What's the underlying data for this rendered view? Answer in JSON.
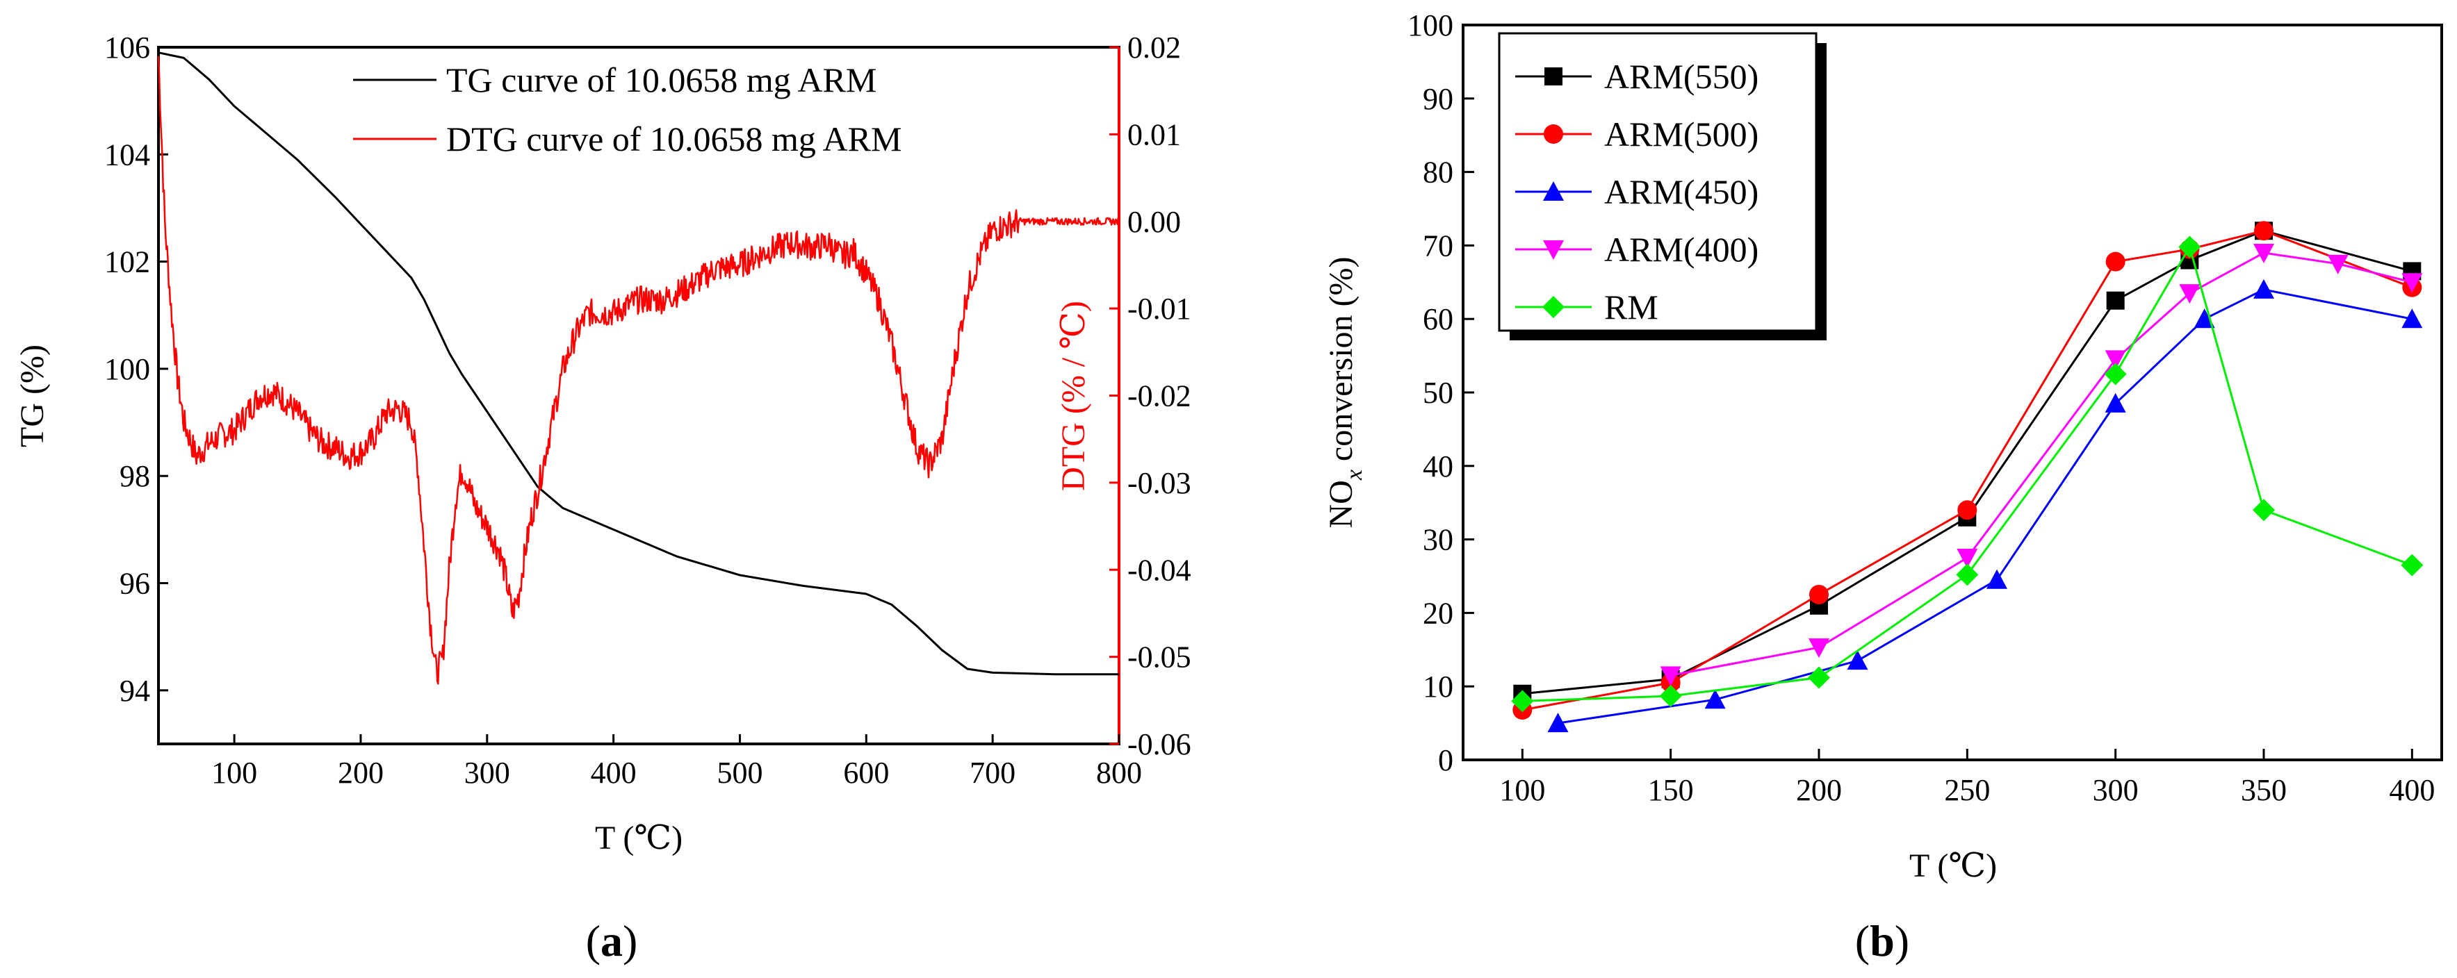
{
  "figure_labels": {
    "a": "a",
    "b": "b"
  },
  "chart_data": [
    {
      "id": "a",
      "type": "line",
      "xlabel": "T (℃)",
      "ylabel_left": "TG (%)",
      "ylabel_right": "DTG (% / ℃)",
      "xlim": [
        40,
        800
      ],
      "ylim_left": [
        93,
        106
      ],
      "ylim_right": [
        -0.06,
        0.02
      ],
      "x_ticks": [
        100,
        200,
        300,
        400,
        500,
        600,
        700,
        800
      ],
      "y_ticks_left": [
        94,
        96,
        98,
        100,
        102,
        104,
        106
      ],
      "y_ticks_right": [
        -0.06,
        -0.05,
        -0.04,
        -0.03,
        -0.02,
        -0.01,
        0.0,
        0.01,
        0.02
      ],
      "y_ticks_right_labels": [
        "-0.06",
        "-0.05",
        "-0.04",
        "-0.03",
        "-0.02",
        "-0.01",
        "0.00",
        "0.01",
        "0.02"
      ],
      "series": [
        {
          "name": "TG curve of 10.0658 mg  ARM",
          "axis": "left",
          "color": "#000000",
          "x": [
            40,
            60,
            80,
            100,
            120,
            150,
            180,
            200,
            220,
            240,
            250,
            260,
            270,
            280,
            300,
            320,
            340,
            360,
            380,
            400,
            450,
            500,
            550,
            600,
            620,
            640,
            660,
            680,
            700,
            750,
            800
          ],
          "y": [
            105.9,
            105.8,
            105.4,
            104.9,
            104.5,
            103.9,
            103.2,
            102.7,
            102.2,
            101.7,
            101.3,
            100.8,
            100.3,
            99.9,
            99.2,
            98.5,
            97.8,
            97.4,
            97.2,
            97.0,
            96.5,
            96.15,
            95.95,
            95.8,
            95.6,
            95.2,
            94.75,
            94.4,
            94.33,
            94.3,
            94.3
          ]
        },
        {
          "name": "DTG curve of 10.0658 mg  ARM",
          "axis": "right",
          "color": "#ff0000",
          "x": [
            40,
            45,
            50,
            55,
            60,
            70,
            80,
            90,
            100,
            110,
            120,
            130,
            140,
            150,
            160,
            170,
            180,
            190,
            200,
            210,
            215,
            220,
            230,
            240,
            245,
            250,
            255,
            260,
            265,
            270,
            275,
            280,
            285,
            290,
            300,
            305,
            310,
            315,
            320,
            325,
            330,
            335,
            340,
            350,
            360,
            370,
            380,
            400,
            420,
            440,
            460,
            480,
            500,
            520,
            540,
            560,
            570,
            580,
            590,
            600,
            610,
            620,
            630,
            640,
            650,
            655,
            660,
            670,
            680,
            690,
            700,
            720,
            740,
            760,
            780,
            800
          ],
          "y": [
            0.019,
            0.0,
            -0.01,
            -0.018,
            -0.023,
            -0.027,
            -0.0255,
            -0.0245,
            -0.024,
            -0.022,
            -0.02,
            -0.0195,
            -0.0205,
            -0.022,
            -0.024,
            -0.0255,
            -0.026,
            -0.027,
            -0.0265,
            -0.025,
            -0.0235,
            -0.022,
            -0.0215,
            -0.023,
            -0.028,
            -0.037,
            -0.046,
            -0.052,
            -0.05,
            -0.04,
            -0.032,
            -0.0285,
            -0.03,
            -0.0325,
            -0.035,
            -0.0365,
            -0.038,
            -0.041,
            -0.045,
            -0.043,
            -0.038,
            -0.034,
            -0.031,
            -0.024,
            -0.017,
            -0.013,
            -0.0105,
            -0.0105,
            -0.009,
            -0.009,
            -0.0075,
            -0.0055,
            -0.005,
            -0.0035,
            -0.0025,
            -0.003,
            -0.0025,
            -0.004,
            -0.0035,
            -0.006,
            -0.009,
            -0.014,
            -0.02,
            -0.026,
            -0.028,
            -0.0265,
            -0.025,
            -0.016,
            -0.008,
            -0.004,
            -0.001,
            0.0,
            0.0,
            0.0,
            0.0,
            0.0
          ]
        }
      ]
    },
    {
      "id": "b",
      "type": "line",
      "xlabel": "T (℃)",
      "ylabel_main": "NO",
      "ylabel_sub": "x",
      "ylabel_rest": " conversion (%)",
      "xlim": [
        80,
        410
      ],
      "ylim": [
        0,
        100
      ],
      "x_ticks": [
        100,
        150,
        200,
        250,
        300,
        350,
        400
      ],
      "y_ticks": [
        0,
        10,
        20,
        30,
        40,
        50,
        60,
        70,
        80,
        90,
        100
      ],
      "legend_position": "top-left",
      "series": [
        {
          "name": "ARM(550)",
          "color": "#000000",
          "marker": "square",
          "x": [
            100,
            150,
            200,
            250,
            300,
            325,
            350,
            400
          ],
          "y": [
            9,
            11,
            21,
            33,
            62.5,
            68,
            72,
            66.5
          ]
        },
        {
          "name": "ARM(500)",
          "color": "#ff0000",
          "marker": "circle",
          "x": [
            100,
            150,
            200,
            250,
            300,
            325,
            350,
            400
          ],
          "y": [
            6.8,
            10.5,
            22.5,
            34,
            67.8,
            69.5,
            72,
            64.3
          ]
        },
        {
          "name": "ARM(450)",
          "color": "#0000ff",
          "marker": "triangle-up",
          "x": [
            112,
            165,
            213,
            260,
            300,
            330,
            350,
            400
          ],
          "y": [
            5,
            8.2,
            13.5,
            24.5,
            48.5,
            60,
            64,
            60
          ]
        },
        {
          "name": "ARM(400)",
          "color": "#ff00ff",
          "marker": "triangle-down",
          "x": [
            150,
            200,
            250,
            300,
            325,
            350,
            375,
            400
          ],
          "y": [
            11.5,
            15.3,
            27.5,
            54.5,
            63.5,
            69,
            67.5,
            65
          ]
        },
        {
          "name": "RM",
          "color": "#00ee00",
          "marker": "diamond",
          "x": [
            100,
            150,
            200,
            250,
            300,
            325,
            350,
            400
          ],
          "y": [
            8,
            8.7,
            11.2,
            25.2,
            52.5,
            69.8,
            34,
            26.5
          ]
        }
      ]
    }
  ]
}
